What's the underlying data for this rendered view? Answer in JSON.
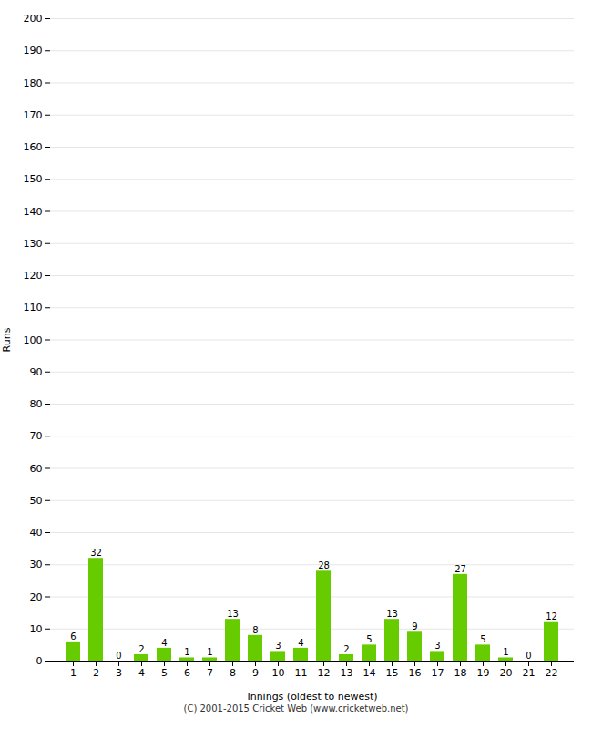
{
  "chart_data": {
    "type": "bar",
    "xlabel": "Innings (oldest to newest)",
    "ylabel": "Runs",
    "categories": [
      1,
      2,
      3,
      4,
      5,
      6,
      7,
      8,
      9,
      10,
      11,
      12,
      13,
      14,
      15,
      16,
      17,
      18,
      19,
      20,
      21,
      22
    ],
    "values": [
      6,
      32,
      0,
      2,
      4,
      1,
      1,
      13,
      8,
      3,
      4,
      28,
      2,
      5,
      13,
      9,
      3,
      27,
      5,
      1,
      0,
      12
    ],
    "color": "#66cc00",
    "ylim": [
      0,
      200
    ],
    "yticks": [
      0,
      10,
      20,
      30,
      40,
      50,
      60,
      70,
      80,
      90,
      100,
      110,
      120,
      130,
      140,
      150,
      160,
      170,
      180,
      190,
      200
    ],
    "grid": true,
    "data_labels": true,
    "caption": "(C) 2001-2015 Cricket Web (www.cricketweb.net)"
  }
}
